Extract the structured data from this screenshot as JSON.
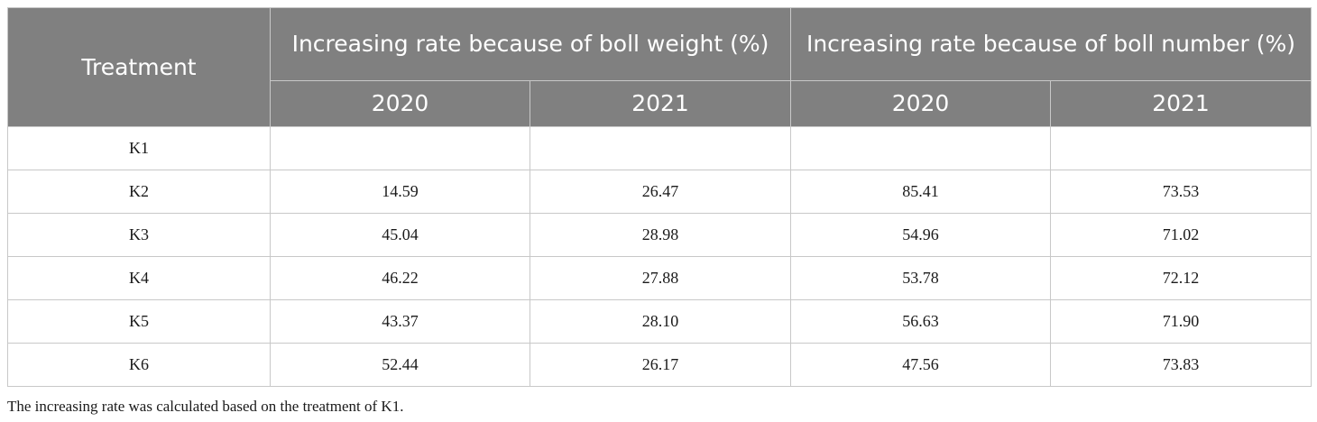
{
  "table": {
    "treatment_header": "Treatment",
    "group_headers": [
      "Increasing rate because of boll weight (%)",
      "Increasing rate because of boll number (%)"
    ],
    "year_headers": [
      "2020",
      "2021",
      "2020",
      "2021"
    ],
    "rows": [
      {
        "treatment": "K1",
        "values": [
          "",
          "",
          "",
          ""
        ]
      },
      {
        "treatment": "K2",
        "values": [
          "14.59",
          "26.47",
          "85.41",
          "73.53"
        ]
      },
      {
        "treatment": "K3",
        "values": [
          "45.04",
          "28.98",
          "54.96",
          "71.02"
        ]
      },
      {
        "treatment": "K4",
        "values": [
          "46.22",
          "27.88",
          "53.78",
          "72.12"
        ]
      },
      {
        "treatment": "K5",
        "values": [
          "43.37",
          "28.10",
          "56.63",
          "71.90"
        ]
      },
      {
        "treatment": "K6",
        "values": [
          "52.44",
          "26.17",
          "47.56",
          "73.83"
        ]
      }
    ]
  },
  "footnote": "The increasing rate was calculated based on the treatment of K1."
}
